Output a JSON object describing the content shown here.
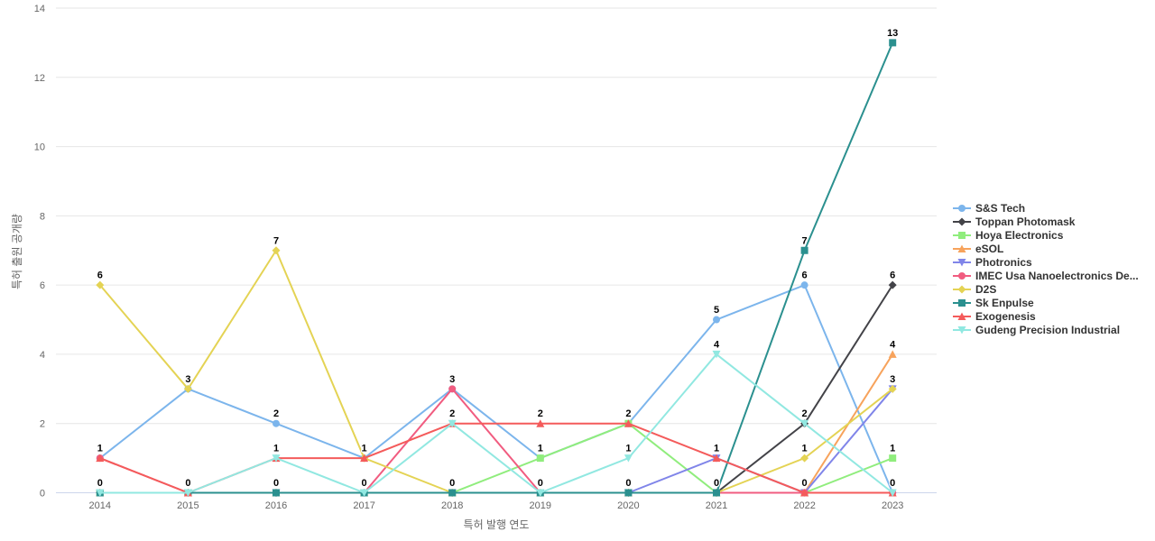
{
  "chart_data": {
    "type": "line",
    "title": "",
    "xlabel": "특허 발행 연도",
    "ylabel": "특허 출원 공개량",
    "categories": [
      "2014",
      "2015",
      "2016",
      "2017",
      "2018",
      "2019",
      "2020",
      "2021",
      "2022",
      "2023"
    ],
    "ylim": [
      0,
      14
    ],
    "yticks": [
      0,
      2,
      4,
      6,
      8,
      10,
      12,
      14
    ],
    "grid": "horizontal",
    "legend_position": "right",
    "data_labels": "shown, bold, unique value per year column",
    "series": [
      {
        "name": "S&S Tech",
        "color": "#7cb5ec",
        "marker": "circle",
        "values": [
          1,
          3,
          2,
          1,
          3,
          1,
          2,
          5,
          6,
          0
        ]
      },
      {
        "name": "Toppan Photomask",
        "color": "#434348",
        "marker": "diamond",
        "values": [
          0,
          0,
          0,
          0,
          0,
          0,
          0,
          0,
          2,
          6
        ]
      },
      {
        "name": "Hoya Electronics",
        "color": "#90ed7d",
        "marker": "square",
        "values": [
          0,
          0,
          0,
          0,
          0,
          1,
          2,
          0,
          0,
          1
        ]
      },
      {
        "name": "eSOL",
        "color": "#f7a35c",
        "marker": "triangle",
        "values": [
          0,
          0,
          0,
          0,
          0,
          0,
          0,
          0,
          0,
          4
        ]
      },
      {
        "name": "Photronics",
        "color": "#8085e9",
        "marker": "triangle-down",
        "values": [
          0,
          0,
          0,
          0,
          0,
          0,
          0,
          1,
          0,
          3
        ]
      },
      {
        "name": "IMEC Usa Nanoelectronics De...",
        "color": "#f15c80",
        "marker": "circle",
        "values": [
          1,
          0,
          0,
          0,
          3,
          0,
          0,
          0,
          0,
          0
        ]
      },
      {
        "name": "D2S",
        "color": "#e4d354",
        "marker": "diamond",
        "values": [
          6,
          3,
          7,
          1,
          0,
          0,
          0,
          0,
          1,
          3
        ]
      },
      {
        "name": "Sk Enpulse",
        "color": "#2b908f",
        "marker": "square",
        "values": [
          0,
          0,
          0,
          0,
          0,
          0,
          0,
          0,
          7,
          13
        ]
      },
      {
        "name": "Exogenesis",
        "color": "#f45b5b",
        "marker": "triangle",
        "values": [
          1,
          0,
          1,
          1,
          2,
          2,
          2,
          1,
          0,
          0
        ]
      },
      {
        "name": "Gudeng Precision Industrial",
        "color": "#91e8e1",
        "marker": "triangle-down",
        "values": [
          0,
          0,
          1,
          0,
          2,
          0,
          1,
          4,
          2,
          0
        ]
      }
    ],
    "colors": {
      "grid": "#e6e6e6",
      "axis_line": "#ccd6eb",
      "tick_label": "#666666",
      "axis_title": "#666666",
      "data_label": "#000000",
      "legend_label": "#333333",
      "background": "#ffffff"
    }
  }
}
